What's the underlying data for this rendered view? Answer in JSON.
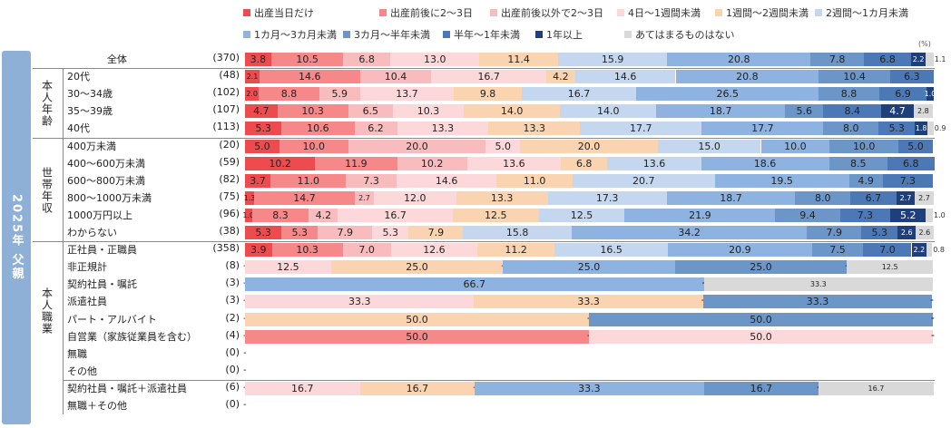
{
  "chart_data": {
    "type": "bar",
    "orientation": "horizontal",
    "stacked": "100%",
    "title": "2025年 父親",
    "unit": "(%)",
    "legend_position": "top",
    "categories_legend": [
      {
        "name": "出産当日だけ",
        "color": "#ee4b4f"
      },
      {
        "name": "出産前後に2～3日",
        "color": "#f7888a"
      },
      {
        "name": "出産前後以外で2～3日",
        "color": "#f9bcbe"
      },
      {
        "name": "4日～1週間未満",
        "color": "#fdd8da"
      },
      {
        "name": "1週間～2週間未満",
        "color": "#fad3b1"
      },
      {
        "name": "2週間～1カ月未満",
        "color": "#c5d7ee"
      },
      {
        "name": "1カ月～3カ月未満",
        "color": "#8eb3e0"
      },
      {
        "name": "3カ月～半年未満",
        "color": "#6d96c8"
      },
      {
        "name": "半年～1年未満",
        "color": "#4d78b6"
      },
      {
        "name": "1年以上",
        "color": "#1f3f7a"
      },
      {
        "name": "あてはまるものはない",
        "color": "#d9d9d9"
      }
    ],
    "groups": [
      {
        "label": "",
        "rows": [
          {
            "label": "全体",
            "n": "(370)",
            "values": [
              3.8,
              10.5,
              6.8,
              13.0,
              11.4,
              15.9,
              20.8,
              7.8,
              6.8,
              2.2,
              1.1
            ]
          }
        ]
      },
      {
        "label": "本人年齢",
        "rows": [
          {
            "label": "20代",
            "n": "(48)",
            "values": [
              2.1,
              14.6,
              10.4,
              16.7,
              4.2,
              14.6,
              20.8,
              10.4,
              6.3,
              0,
              0
            ]
          },
          {
            "label": "30～34歳",
            "n": "(102)",
            "values": [
              2.0,
              8.8,
              5.9,
              13.7,
              9.8,
              16.7,
              26.5,
              8.8,
              6.9,
              1.0,
              0
            ]
          },
          {
            "label": "35～39歳",
            "n": "(107)",
            "values": [
              4.7,
              10.3,
              6.5,
              10.3,
              14.0,
              14.0,
              18.7,
              5.6,
              8.4,
              4.7,
              2.8
            ]
          },
          {
            "label": "40代",
            "n": "(113)",
            "values": [
              5.3,
              10.6,
              6.2,
              13.3,
              13.3,
              17.7,
              17.7,
              8.0,
              5.3,
              1.8,
              0.9
            ]
          }
        ]
      },
      {
        "label": "世帯年収",
        "rows": [
          {
            "label": "400万未満",
            "n": "(20)",
            "values": [
              5.0,
              10.0,
              20.0,
              5.0,
              20.0,
              15.0,
              10.0,
              10.0,
              5.0,
              0,
              0
            ]
          },
          {
            "label": "400～600万未満",
            "n": "(59)",
            "values": [
              10.2,
              11.9,
              10.2,
              13.6,
              6.8,
              13.6,
              18.6,
              8.5,
              6.8,
              0,
              0
            ]
          },
          {
            "label": "600～800万未満",
            "n": "(82)",
            "values": [
              3.7,
              11.0,
              7.3,
              14.6,
              11.0,
              20.7,
              19.5,
              4.9,
              7.3,
              0,
              0
            ]
          },
          {
            "label": "800～1000万未満",
            "n": "(75)",
            "values": [
              1.3,
              14.7,
              2.7,
              12.0,
              13.3,
              17.3,
              18.7,
              8.0,
              6.7,
              2.7,
              2.7
            ]
          },
          {
            "label": "1000万円以上",
            "n": "(96)",
            "values": [
              1.0,
              8.3,
              4.2,
              16.7,
              12.5,
              12.5,
              21.9,
              9.4,
              7.3,
              5.2,
              1.0
            ]
          },
          {
            "label": "わからない",
            "n": "(38)",
            "values": [
              5.3,
              5.3,
              7.9,
              5.3,
              7.9,
              15.8,
              34.2,
              7.9,
              5.3,
              2.6,
              2.6
            ]
          }
        ]
      },
      {
        "label": "本人職業",
        "rows": [
          {
            "label": "正社員・正職員",
            "n": "(358)",
            "values": [
              3.9,
              10.3,
              7.0,
              12.6,
              11.2,
              16.5,
              20.9,
              7.5,
              7.0,
              2.2,
              0.8
            ]
          },
          {
            "label": "非正規計",
            "n": "(8)",
            "values": [
              0,
              0,
              0,
              12.5,
              25.0,
              0,
              25.0,
              25.0,
              0,
              0,
              12.5
            ]
          },
          {
            "label": "契約社員・嘱託",
            "n": "(3)",
            "values": [
              0,
              0,
              0,
              0,
              0,
              0,
              66.7,
              0,
              0,
              0,
              33.3
            ]
          },
          {
            "label": "派遣社員",
            "n": "(3)",
            "values": [
              0,
              0,
              0,
              33.3,
              33.3,
              0,
              0,
              33.3,
              0,
              0,
              0
            ]
          },
          {
            "label": "パート・アルバイト",
            "n": "(2)",
            "values": [
              0,
              0,
              0,
              0,
              50.0,
              0,
              0,
              50.0,
              0,
              0,
              0
            ]
          },
          {
            "label": "自営業（家族従業員を含む）",
            "n": "(4)",
            "values": [
              0,
              50.0,
              0,
              50.0,
              0,
              0,
              0,
              0,
              0,
              0,
              0
            ]
          },
          {
            "label": "無職",
            "n": "(0)",
            "values": []
          },
          {
            "label": "その他",
            "n": "(0)",
            "values": []
          }
        ]
      },
      {
        "label": "",
        "rows": [
          {
            "label": "契約社員・嘱託＋派遣社員",
            "n": "(6)",
            "values": [
              0,
              0,
              0,
              16.7,
              16.7,
              0,
              33.3,
              16.7,
              0,
              0,
              16.7
            ]
          },
          {
            "label": "無職＋その他",
            "n": "(0)",
            "values": []
          }
        ]
      }
    ],
    "xlim": [
      0,
      100
    ]
  }
}
